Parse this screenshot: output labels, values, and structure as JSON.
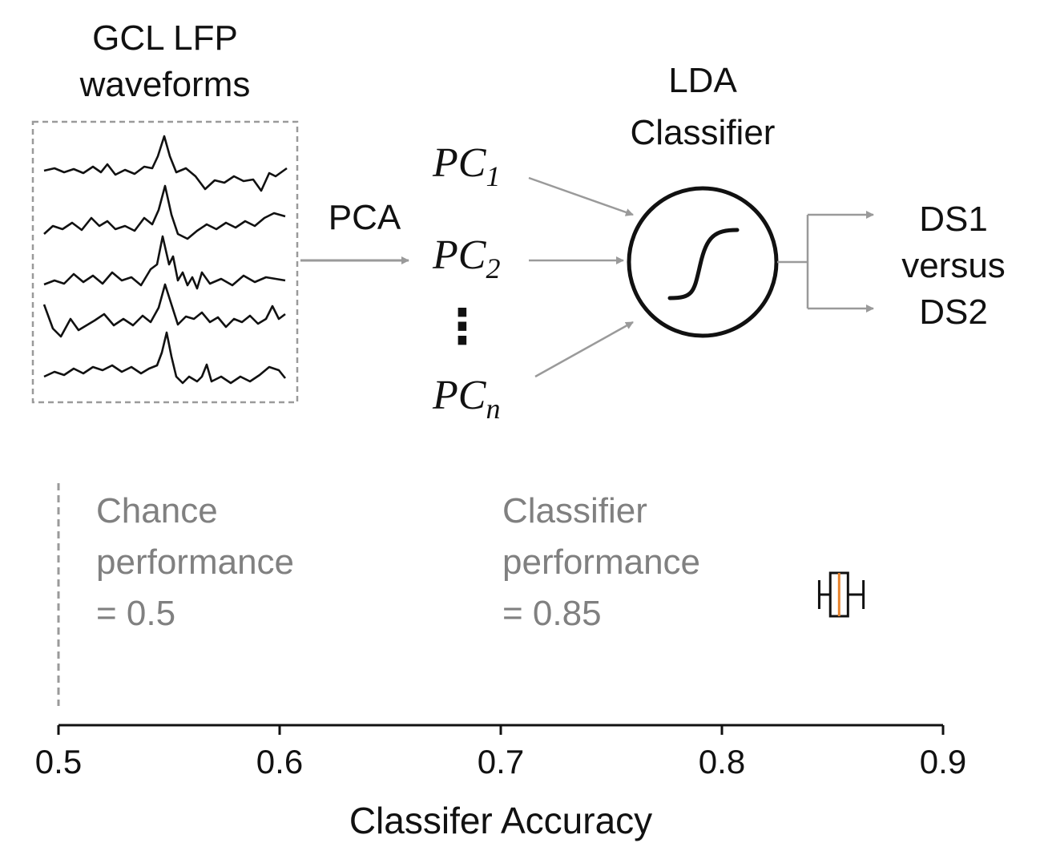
{
  "pipeline": {
    "input_title_line1": "GCL LFP",
    "input_title_line2": "waveforms",
    "waveform_count": 5,
    "pca_label": "PCA",
    "pc_prefix": "PC",
    "pc_subscripts": [
      "1",
      "2",
      "n"
    ],
    "ellipsis": "⋮",
    "classifier_title_line1": "LDA",
    "classifier_title_line2": "Classifier",
    "output_line1": "DS1",
    "output_line2": "versus",
    "output_line3": "DS2"
  },
  "annotations": {
    "chance": [
      "Chance",
      "performance",
      "= 0.5"
    ],
    "classifier": [
      "Classifier",
      "performance",
      "= 0.85"
    ]
  },
  "colors": {
    "dark": "#111111",
    "arrow_gray": "#9a9a9a",
    "muted_text": "#808080",
    "median_orange": "#e8822a"
  },
  "chart_data": {
    "type": "box",
    "xlabel": "Classifer Accuracy",
    "xlim": [
      0.5,
      0.9
    ],
    "xticks": [
      "0.5",
      "0.6",
      "0.7",
      "0.8",
      "0.9"
    ],
    "chance_level": 0.5,
    "box": {
      "whisker_low": 0.844,
      "q1": 0.849,
      "median": 0.853,
      "q3": 0.857,
      "whisker_high": 0.864
    }
  }
}
